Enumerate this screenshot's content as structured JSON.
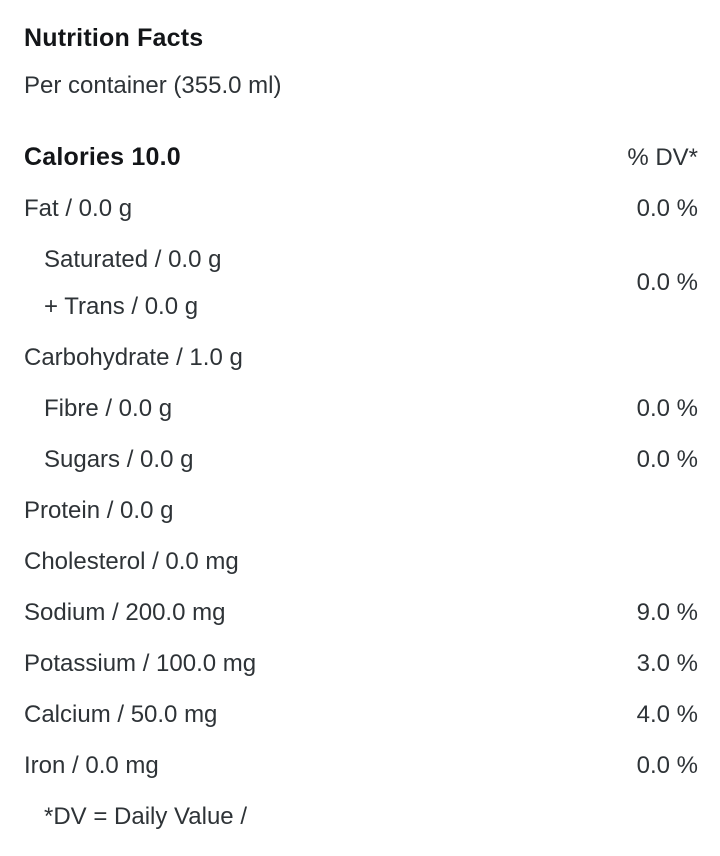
{
  "title": "Nutrition Facts",
  "serving": "Per container (355.0 ml)",
  "header": {
    "calories_label": "Calories 10.0",
    "dv_label": "% DV*"
  },
  "rows": [
    {
      "lines": [
        "Fat / 0.0 g"
      ],
      "value": "0.0 %",
      "indent": false
    },
    {
      "lines": [
        "Saturated / 0.0 g",
        "+ Trans / 0.0 g"
      ],
      "value": "0.0 %",
      "indent": true
    },
    {
      "lines": [
        "Carbohydrate / 1.0 g"
      ],
      "value": "",
      "indent": false
    },
    {
      "lines": [
        "Fibre / 0.0 g"
      ],
      "value": "0.0 %",
      "indent": true
    },
    {
      "lines": [
        "Sugars / 0.0 g"
      ],
      "value": "0.0 %",
      "indent": true
    },
    {
      "lines": [
        "Protein / 0.0 g"
      ],
      "value": "",
      "indent": false
    },
    {
      "lines": [
        "Cholesterol / 0.0 mg"
      ],
      "value": "",
      "indent": false
    },
    {
      "lines": [
        "Sodium / 200.0 mg"
      ],
      "value": "9.0 %",
      "indent": false
    },
    {
      "lines": [
        "Potassium / 100.0 mg"
      ],
      "value": "3.0 %",
      "indent": false
    },
    {
      "lines": [
        "Calcium / 50.0 mg"
      ],
      "value": "4.0 %",
      "indent": false
    },
    {
      "lines": [
        "Iron / 0.0 mg"
      ],
      "value": "0.0 %",
      "indent": false
    }
  ],
  "footnote": "*DV = Daily Value /",
  "colors": {
    "background": "#ffffff",
    "text": "#2e3337",
    "bold_text": "#131518"
  }
}
